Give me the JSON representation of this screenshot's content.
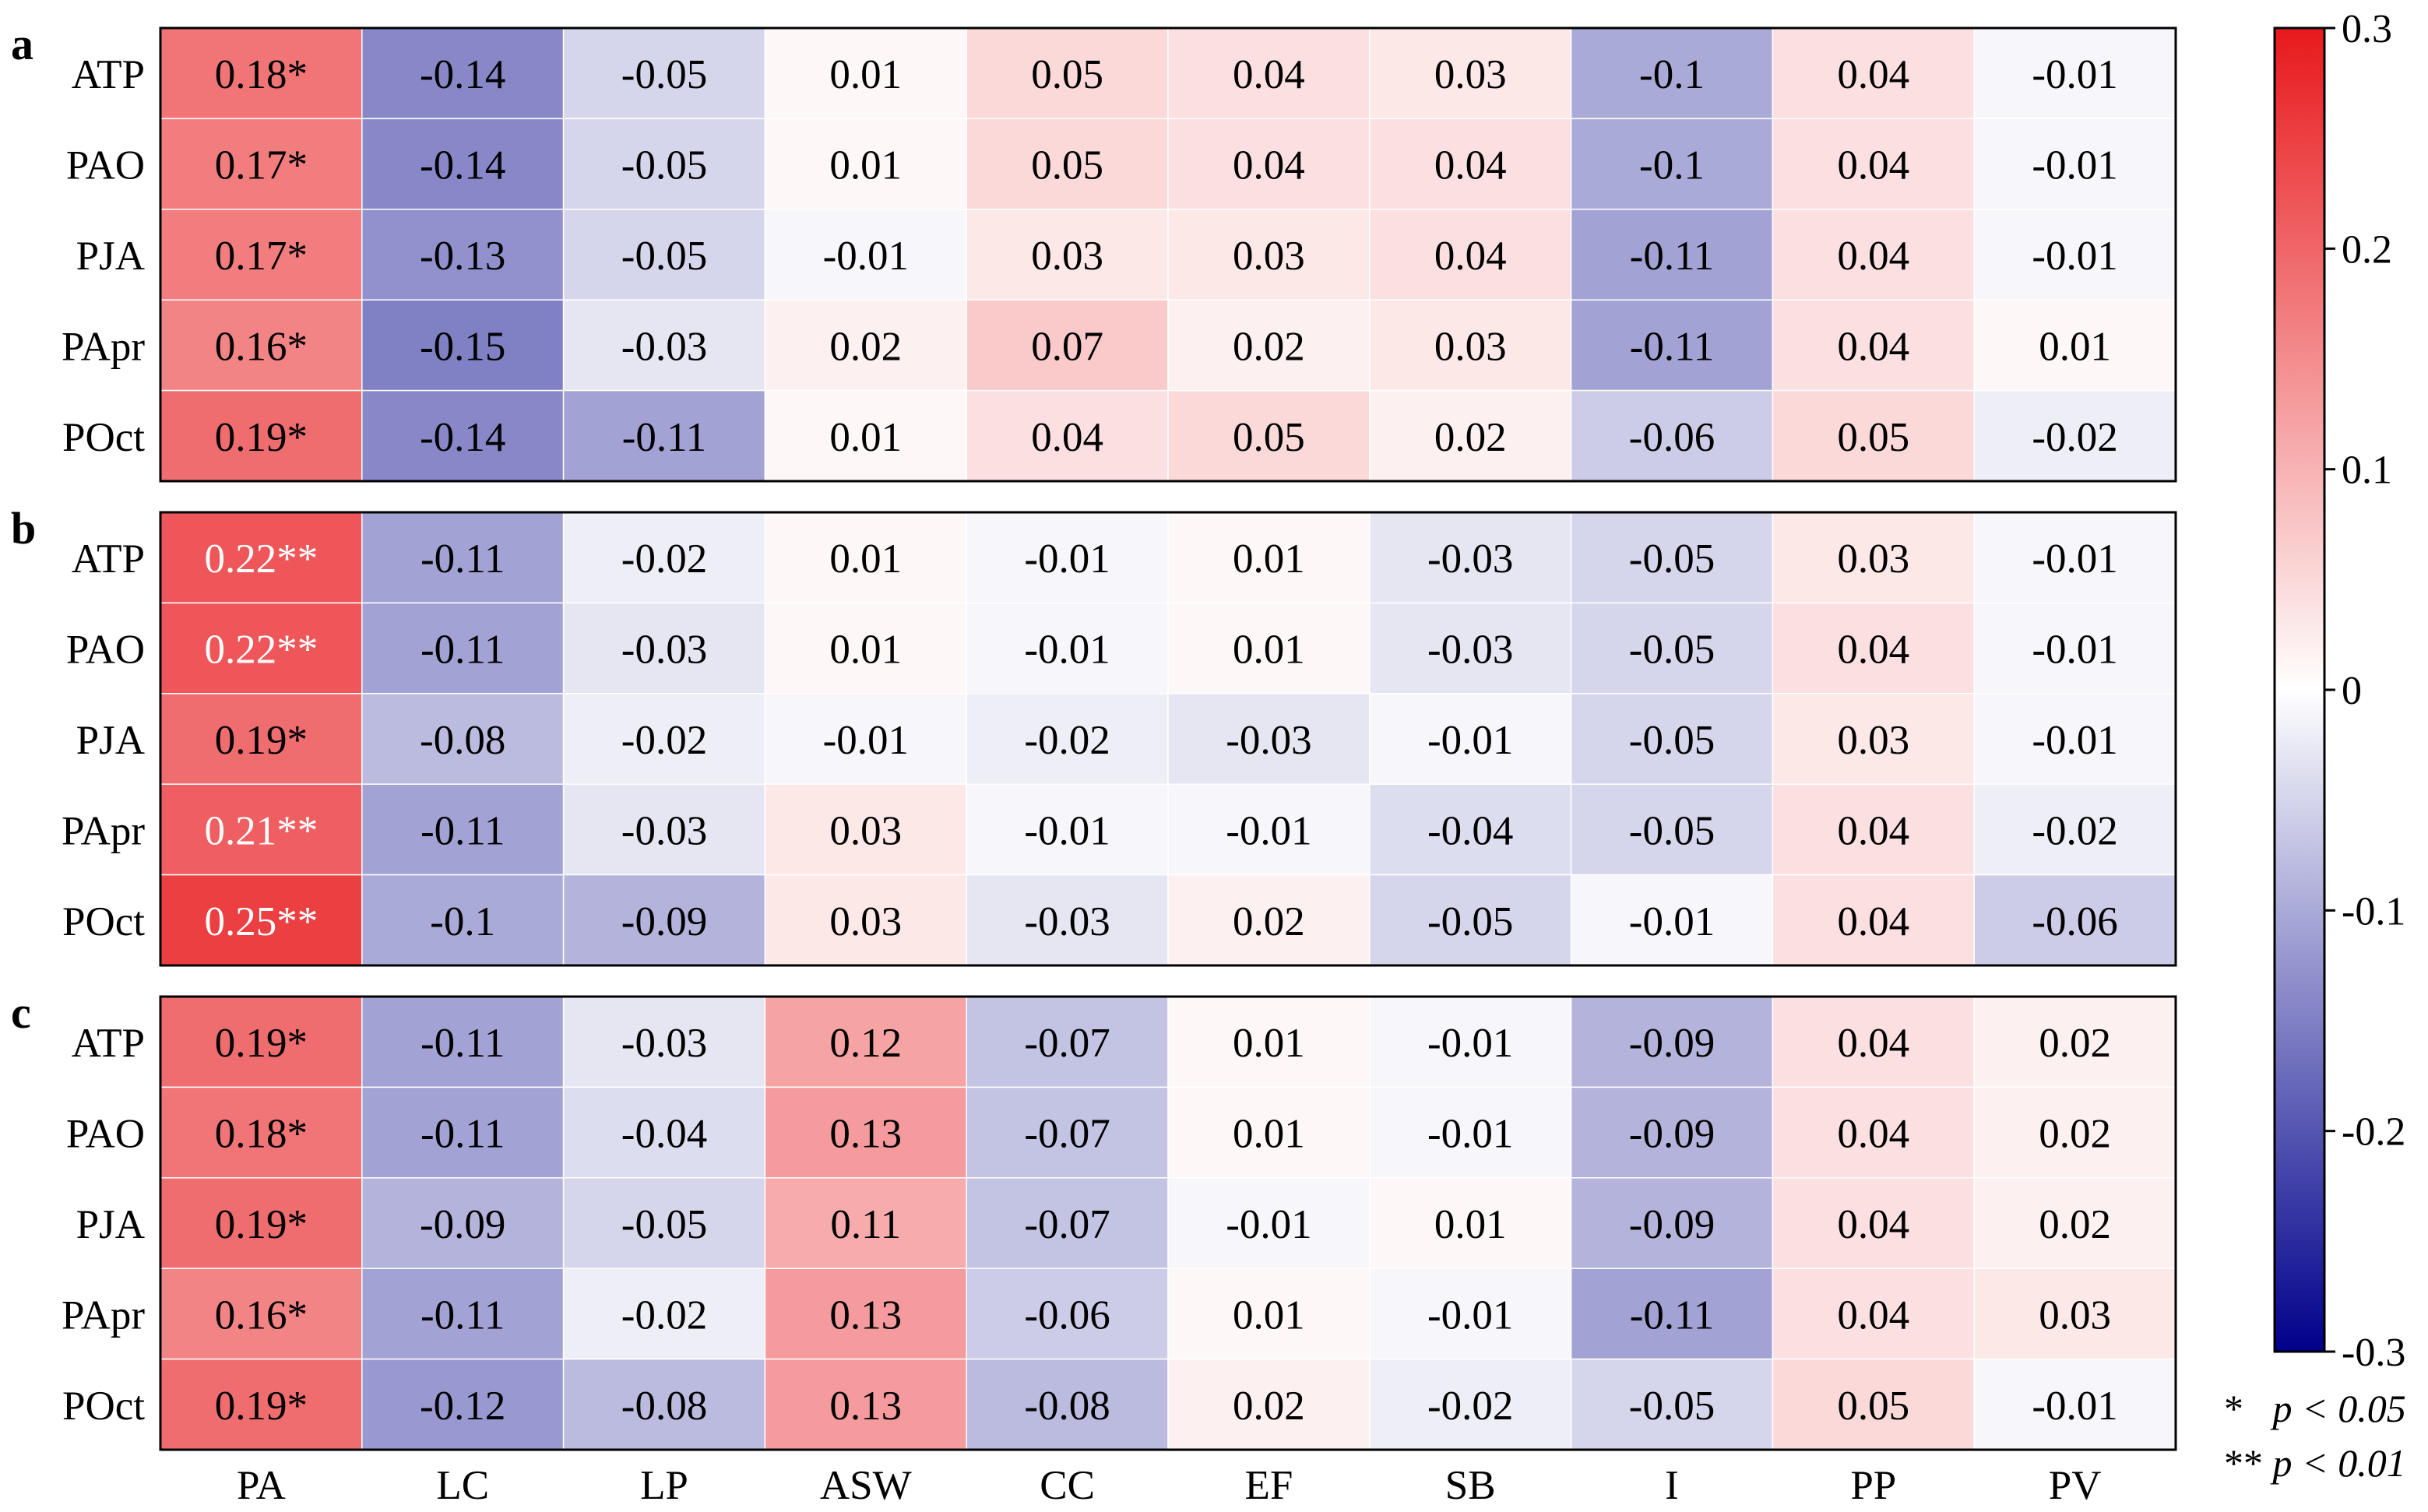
{
  "chart_data": {
    "type": "heatmap",
    "columns": [
      "PA",
      "LC",
      "LP",
      "ASW",
      "CC",
      "EF",
      "SB",
      "I",
      "PP",
      "PV"
    ],
    "rows": [
      "ATP",
      "PAO",
      "PJA",
      "PApr",
      "POct"
    ],
    "colorbar": {
      "range": [
        -0.3,
        0.3
      ],
      "ticks": [
        "0.3",
        "0.2",
        "0.1",
        "0",
        "-0.1",
        "-0.2",
        "-0.3"
      ],
      "colors": {
        "low": "#00008b",
        "mid": "#ffffff",
        "high": "#e8191c"
      }
    },
    "panels": [
      {
        "label": "a",
        "values": [
          [
            0.18,
            -0.14,
            -0.05,
            0.01,
            0.05,
            0.04,
            0.03,
            -0.1,
            0.04,
            -0.01
          ],
          [
            0.17,
            -0.14,
            -0.05,
            0.01,
            0.05,
            0.04,
            0.04,
            -0.1,
            0.04,
            -0.01
          ],
          [
            0.17,
            -0.13,
            -0.05,
            -0.01,
            0.03,
            0.03,
            0.04,
            -0.11,
            0.04,
            -0.01
          ],
          [
            0.16,
            -0.15,
            -0.03,
            0.02,
            0.07,
            0.02,
            0.03,
            -0.11,
            0.04,
            0.01
          ],
          [
            0.19,
            -0.14,
            -0.11,
            0.01,
            0.04,
            0.05,
            0.02,
            -0.06,
            0.05,
            -0.02
          ]
        ],
        "labels": [
          [
            "0.18*",
            "-0.14",
            "-0.05",
            "0.01",
            "0.05",
            "0.04",
            "0.03",
            "-0.1",
            "0.04",
            "-0.01"
          ],
          [
            "0.17*",
            "-0.14",
            "-0.05",
            "0.01",
            "0.05",
            "0.04",
            "0.04",
            "-0.1",
            "0.04",
            "-0.01"
          ],
          [
            "0.17*",
            "-0.13",
            "-0.05",
            "-0.01",
            "0.03",
            "0.03",
            "0.04",
            "-0.11",
            "0.04",
            "-0.01"
          ],
          [
            "0.16*",
            "-0.15",
            "-0.03",
            "0.02",
            "0.07",
            "0.02",
            "0.03",
            "-0.11",
            "0.04",
            "0.01"
          ],
          [
            "0.19*",
            "-0.14",
            "-0.11",
            "0.01",
            "0.04",
            "0.05",
            "0.02",
            "-0.06",
            "0.05",
            "-0.02"
          ]
        ]
      },
      {
        "label": "b",
        "values": [
          [
            0.22,
            -0.11,
            -0.02,
            0.01,
            -0.01,
            0.01,
            -0.03,
            -0.05,
            0.03,
            -0.01
          ],
          [
            0.22,
            -0.11,
            -0.03,
            0.01,
            -0.01,
            0.01,
            -0.03,
            -0.05,
            0.04,
            -0.01
          ],
          [
            0.19,
            -0.08,
            -0.02,
            -0.01,
            -0.02,
            -0.03,
            -0.01,
            -0.05,
            0.03,
            -0.01
          ],
          [
            0.21,
            -0.11,
            -0.03,
            0.03,
            -0.01,
            -0.01,
            -0.04,
            -0.05,
            0.04,
            -0.02
          ],
          [
            0.25,
            -0.1,
            -0.09,
            0.03,
            -0.03,
            0.02,
            -0.05,
            -0.01,
            0.04,
            -0.06
          ]
        ],
        "labels": [
          [
            "0.22**",
            "-0.11",
            "-0.02",
            "0.01",
            "-0.01",
            "0.01",
            "-0.03",
            "-0.05",
            "0.03",
            "-0.01"
          ],
          [
            "0.22**",
            "-0.11",
            "-0.03",
            "0.01",
            "-0.01",
            "0.01",
            "-0.03",
            "-0.05",
            "0.04",
            "-0.01"
          ],
          [
            "0.19*",
            "-0.08",
            "-0.02",
            "-0.01",
            "-0.02",
            "-0.03",
            "-0.01",
            "-0.05",
            "0.03",
            "-0.01"
          ],
          [
            "0.21**",
            "-0.11",
            "-0.03",
            "0.03",
            "-0.01",
            "-0.01",
            "-0.04",
            "-0.05",
            "0.04",
            "-0.02"
          ],
          [
            "0.25**",
            "-0.1",
            "-0.09",
            "0.03",
            "-0.03",
            "0.02",
            "-0.05",
            "-0.01",
            "0.04",
            "-0.06"
          ]
        ]
      },
      {
        "label": "c",
        "values": [
          [
            0.19,
            -0.11,
            -0.03,
            0.12,
            -0.07,
            0.01,
            -0.01,
            -0.09,
            0.04,
            0.02
          ],
          [
            0.18,
            -0.11,
            -0.04,
            0.13,
            -0.07,
            0.01,
            -0.01,
            -0.09,
            0.04,
            0.02
          ],
          [
            0.19,
            -0.09,
            -0.05,
            0.11,
            -0.07,
            -0.01,
            0.01,
            -0.09,
            0.04,
            0.02
          ],
          [
            0.16,
            -0.11,
            -0.02,
            0.13,
            -0.06,
            0.01,
            -0.01,
            -0.11,
            0.04,
            0.03
          ],
          [
            0.19,
            -0.12,
            -0.08,
            0.13,
            -0.08,
            0.02,
            -0.02,
            -0.05,
            0.05,
            -0.01
          ]
        ],
        "labels": [
          [
            "0.19*",
            "-0.11",
            "-0.03",
            "0.12",
            "-0.07",
            "0.01",
            "-0.01",
            "-0.09",
            "0.04",
            "0.02"
          ],
          [
            "0.18*",
            "-0.11",
            "-0.04",
            "0.13",
            "-0.07",
            "0.01",
            "-0.01",
            "-0.09",
            "0.04",
            "0.02"
          ],
          [
            "0.19*",
            "-0.09",
            "-0.05",
            "0.11",
            "-0.07",
            "-0.01",
            "0.01",
            "-0.09",
            "0.04",
            "0.02"
          ],
          [
            "0.16*",
            "-0.11",
            "-0.02",
            "0.13",
            "-0.06",
            "0.01",
            "-0.01",
            "-0.11",
            "0.04",
            "0.03"
          ],
          [
            "0.19*",
            "-0.12",
            "-0.08",
            "0.13",
            "-0.08",
            "0.02",
            "-0.02",
            "-0.05",
            "0.05",
            "-0.01"
          ]
        ]
      }
    ],
    "significance_legend": [
      {
        "symbol": "*",
        "text": "p < 0.05"
      },
      {
        "symbol": "**",
        "text": "p < 0.01"
      }
    ]
  }
}
